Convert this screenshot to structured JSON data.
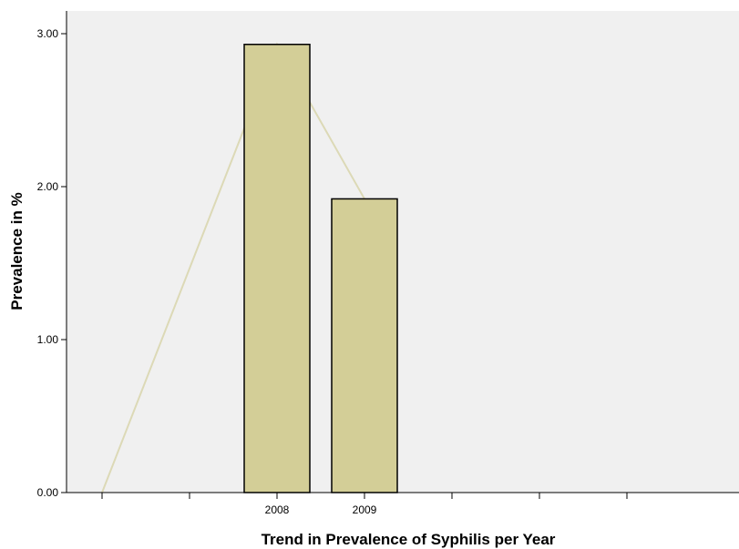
{
  "colors": {
    "plot_background": "#f0f0f0",
    "bar_fill": "#d3ce97",
    "bar_stroke": "#000000",
    "trend_line": "#dcd9b6"
  },
  "chart_data": {
    "type": "bar",
    "categories": [
      "",
      "",
      "2008",
      "2009",
      "",
      "",
      ""
    ],
    "values": [
      null,
      null,
      2.93,
      1.92,
      null,
      null,
      null
    ],
    "trend_line": {
      "x": [
        "",
        "",
        "2008",
        "2009"
      ],
      "values": [
        0.0,
        null,
        2.93,
        1.92
      ]
    },
    "xlabel": "Trend in Prevalence of Syphilis per Year",
    "ylabel": "Prevalence in %",
    "ylim": [
      0,
      3.0
    ],
    "yticks": [
      "0.00",
      "1.00",
      "2.00",
      "3.00"
    ],
    "ytick_values": [
      0,
      1,
      2,
      3
    ],
    "grid": false,
    "legend": "none"
  }
}
